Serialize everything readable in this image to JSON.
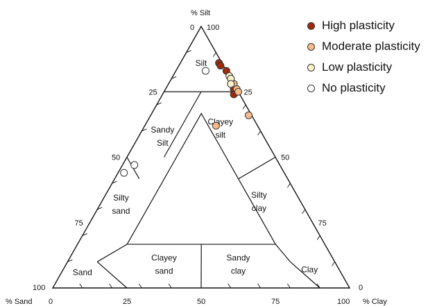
{
  "chart_data": {
    "type": "scatter",
    "diagram": "ternary",
    "axes": {
      "silt": {
        "label": "% Silt",
        "ticks": [
          "0",
          "25",
          "50",
          "75",
          "100"
        ]
      },
      "sand": {
        "label": "% Sand",
        "ticks": [
          "0",
          "25",
          "50",
          "75",
          "100"
        ]
      },
      "clay": {
        "label": "% Clay",
        "ticks": [
          "0",
          "25",
          "50",
          "75",
          "100"
        ]
      },
      "silt_apex_labels": [
        "0",
        "100"
      ],
      "sand_corner_label": "100",
      "clay_corner_label": "0"
    },
    "regions": [
      {
        "name": "silt",
        "lines": [
          "Silt"
        ]
      },
      {
        "name": "sandy-silt",
        "lines": [
          "Sandy",
          "Silt"
        ]
      },
      {
        "name": "clayey-silt",
        "lines": [
          "Clayey",
          "silt"
        ]
      },
      {
        "name": "silty-sand",
        "lines": [
          "Silty",
          "sand"
        ]
      },
      {
        "name": "silty-clay",
        "lines": [
          "Silty",
          "clay"
        ]
      },
      {
        "name": "sand",
        "lines": [
          "Sand"
        ]
      },
      {
        "name": "clayey-sand",
        "lines": [
          "Clayey",
          "sand"
        ]
      },
      {
        "name": "sandy-clay",
        "lines": [
          "Sandy",
          "clay"
        ]
      },
      {
        "name": "clay",
        "lines": [
          "Clay"
        ]
      }
    ],
    "legend_position": "top-right",
    "series": [
      {
        "name": "High plasticity",
        "color": "#9b2d0e",
        "points": [
          {
            "silt": 86,
            "clay": 13
          },
          {
            "silt": 85,
            "clay": 14
          },
          {
            "silt": 83,
            "clay": 17
          },
          {
            "silt": 76,
            "clay": 23
          },
          {
            "silt": 74,
            "clay": 24
          }
        ]
      },
      {
        "name": "Moderate plasticity",
        "color": "#f7bb8c",
        "points": [
          {
            "silt": 78,
            "clay": 22
          },
          {
            "silt": 76,
            "clay": 24
          },
          {
            "silt": 75,
            "clay": 25
          },
          {
            "silt": 66,
            "clay": 33
          },
          {
            "silt": 62,
            "clay": 24
          }
        ]
      },
      {
        "name": "Low plasticity",
        "color": "#fdf0cc",
        "points": [
          {
            "silt": 81,
            "clay": 19
          },
          {
            "silt": 80,
            "clay": 20
          },
          {
            "silt": 78,
            "clay": 21
          }
        ]
      },
      {
        "name": "No plasticity",
        "color": "#ffffff",
        "points": [
          {
            "silt": 83,
            "clay": 10
          },
          {
            "silt": 47,
            "clay": 4
          },
          {
            "silt": 44,
            "clay": 2
          }
        ]
      }
    ]
  }
}
